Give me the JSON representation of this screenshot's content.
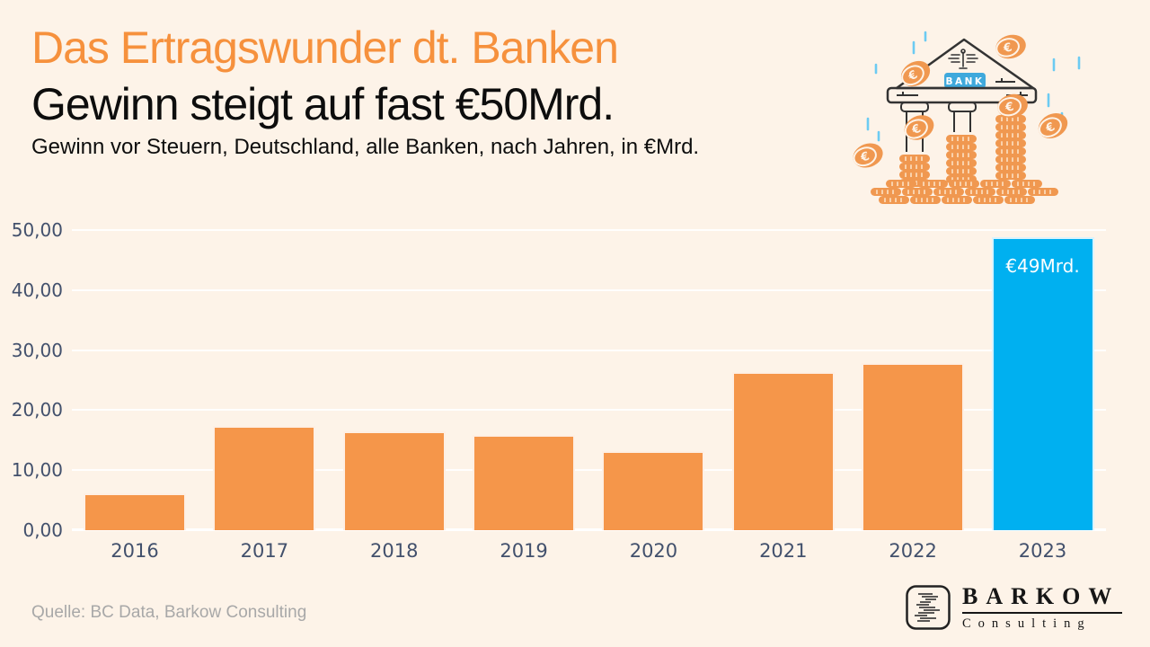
{
  "header": {
    "title": "Das Ertragswunder dt. Banken",
    "subtitle": "Gewinn steigt auf fast €50Mrd.",
    "description": "Gewinn vor Steuern, Deutschland, alle Banken, nach Jahren, in €Mrd."
  },
  "chart_data": {
    "type": "bar",
    "title": "Das Ertragswunder dt. Banken",
    "subtitle": "Gewinn steigt auf fast €50Mrd.",
    "units": "€Mrd.",
    "categories": [
      "2016",
      "2017",
      "2018",
      "2019",
      "2020",
      "2021",
      "2022",
      "2023"
    ],
    "values": [
      6.2,
      17.4,
      16.4,
      15.8,
      13.2,
      26.3,
      27.9,
      48.8
    ],
    "highlight_index": 7,
    "highlight_label": "€49Mrd.",
    "ylim": [
      0,
      50
    ],
    "ytick_labels": [
      "0,00",
      "10,00",
      "20,00",
      "30,00",
      "40,00",
      "50,00"
    ],
    "grid": true,
    "legend": false,
    "bar_color": "#F5964A",
    "highlight_color": "#00B0F0"
  },
  "illustration": {
    "sign_label": "BANK",
    "icons": [
      "bank-building-icon",
      "euro-coin-icon",
      "coin-stack-icon",
      "rain-icon"
    ]
  },
  "footer": {
    "source": "Quelle: BC Data, Barkow Consulting",
    "logo_name": "BARKOW",
    "logo_subtitle": "Consulting"
  },
  "colors": {
    "background": "#FDF3E8",
    "title_orange": "#F6913D",
    "text_dark": "#0D0D0D",
    "axis_text": "#42506C",
    "gridline": "#FFFFFF",
    "source_gray": "#A8A8A8",
    "sign_blue": "#3FA9DC",
    "outline_dark": "#333333",
    "rain_blue": "#6CCBF2",
    "coin_orange": "#F09850"
  }
}
